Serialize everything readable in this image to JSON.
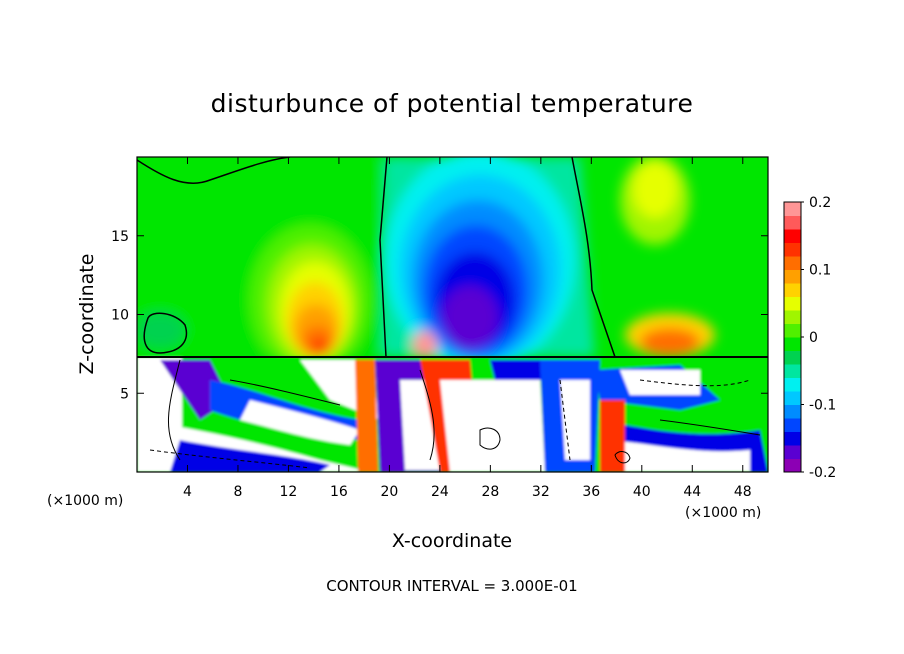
{
  "chart_data": {
    "type": "heatmap",
    "title": "disturbunce of potential temperature",
    "xlabel": "X-coordinate",
    "ylabel": "Z-coordinate",
    "x_unit": "(×1000 m)",
    "x_unit_right": "(×1000 m)",
    "xlim": [
      0,
      50
    ],
    "ylim": [
      0,
      20
    ],
    "x_ticks": [
      4,
      8,
      12,
      16,
      20,
      24,
      28,
      32,
      36,
      40,
      44,
      48
    ],
    "y_ticks": [
      5,
      10,
      15
    ],
    "colorbar": {
      "min": -0.2,
      "max": 0.2,
      "tick_values": [
        0.2,
        0.1,
        0,
        -0.1,
        -0.2
      ],
      "tick_labels": [
        "0.2",
        "0.1",
        "0",
        "-0.1",
        "-0.2"
      ],
      "colors": [
        "#8c00b4",
        "#5a00d2",
        "#0000e6",
        "#0046ff",
        "#008cff",
        "#00c8ff",
        "#00f0f0",
        "#00e6a0",
        "#00d250",
        "#00e600",
        "#50f000",
        "#a0f500",
        "#e6ff00",
        "#ffd200",
        "#ffa000",
        "#ff6e00",
        "#ff3200",
        "#ff0000",
        "#ff5a5a",
        "#ff9696"
      ]
    },
    "grid": false,
    "legend": "colorbar-right",
    "footnote": "CONTOUR INTERVAL = 3.000E-01"
  }
}
